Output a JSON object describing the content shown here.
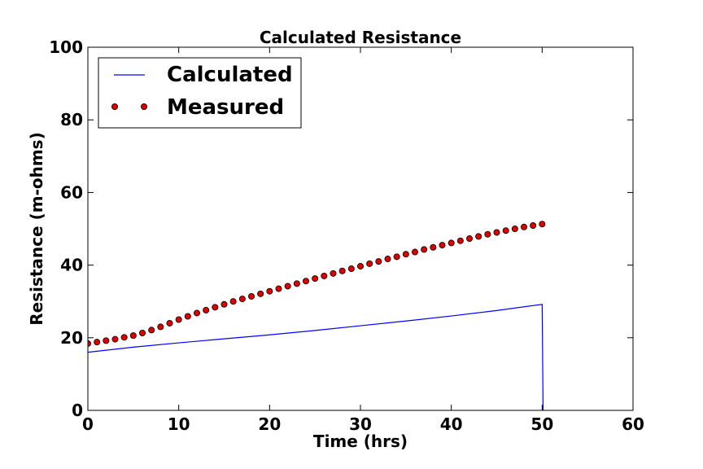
{
  "chart_data": {
    "type": "line",
    "title": "Calculated Resistance",
    "xlabel": "Time (hrs)",
    "ylabel": "Resistance (m-ohms)",
    "xlim": [
      0,
      60
    ],
    "ylim": [
      0,
      100
    ],
    "xticks": [
      0,
      10,
      20,
      30,
      40,
      50,
      60
    ],
    "yticks": [
      0,
      20,
      40,
      60,
      80,
      100
    ],
    "grid": false,
    "legend_position": "top-left",
    "series": [
      {
        "name": "Calculated",
        "style": "line",
        "color": "#0000ff",
        "x": [
          0,
          5,
          10,
          15,
          20,
          25,
          30,
          35,
          40,
          45,
          50,
          50.05,
          50.1
        ],
        "y": [
          16.0,
          17.4,
          18.6,
          19.7,
          20.8,
          22.0,
          23.3,
          24.6,
          26.0,
          27.5,
          29.2,
          15.0,
          0.0
        ]
      },
      {
        "name": "Measured",
        "style": "markers",
        "color": "#dd0000",
        "x": [
          0,
          1,
          2,
          3,
          4,
          5,
          6,
          7,
          8,
          9,
          10,
          11,
          12,
          13,
          14,
          15,
          16,
          17,
          18,
          19,
          20,
          21,
          22,
          23,
          24,
          25,
          26,
          27,
          28,
          29,
          30,
          31,
          32,
          33,
          34,
          35,
          36,
          37,
          38,
          39,
          40,
          41,
          42,
          43,
          44,
          45,
          46,
          47,
          48,
          49,
          50
        ],
        "y": [
          18.4,
          18.8,
          19.2,
          19.6,
          20.1,
          20.6,
          21.3,
          22.1,
          23.0,
          24.0,
          25.0,
          25.9,
          26.8,
          27.6,
          28.4,
          29.2,
          30.0,
          30.7,
          31.4,
          32.1,
          32.8,
          33.5,
          34.2,
          34.9,
          35.6,
          36.3,
          37.0,
          37.7,
          38.4,
          39.0,
          39.7,
          40.4,
          41.0,
          41.7,
          42.3,
          43.0,
          43.6,
          44.3,
          44.9,
          45.5,
          46.1,
          46.7,
          47.3,
          47.9,
          48.5,
          49.0,
          49.5,
          50.0,
          50.5,
          50.9,
          51.3
        ]
      }
    ]
  }
}
